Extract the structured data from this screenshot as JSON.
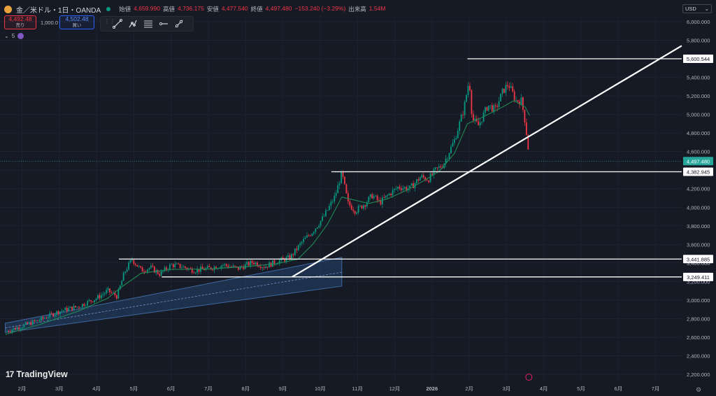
{
  "header": {
    "symbol_title": "金／米ドル・1日・OANDA",
    "open_label": "始値",
    "open_value": "4,659.990",
    "high_label": "高値",
    "high_value": "4,736.175",
    "low_label": "安値",
    "low_value": "4,477.540",
    "close_label": "終値",
    "close_value": "4,497.480",
    "change": "−153.240 (−3.29%)",
    "volume_label": "出来高",
    "volume_value": "1.54M"
  },
  "trade": {
    "sell_price": "4,492.48",
    "sell_label": "売り",
    "quantity": "1,000.0",
    "buy_price": "4,502.48",
    "buy_label": "買い"
  },
  "indicator_row": {
    "label": "5"
  },
  "toolbar": {
    "icons": [
      "trend-line-icon",
      "multi-point-icon",
      "fib-retracement-icon",
      "horizontal-ray-icon",
      "cross-line-icon"
    ]
  },
  "currency_select": "USD",
  "logo": {
    "mark": "17",
    "name": "TradingView"
  },
  "colors": {
    "background": "#161a25",
    "grid": "#1f2330",
    "up": "#089981",
    "down": "#f23645",
    "ma": "#1f8a57",
    "channel": "#26456e",
    "lines": "#ffffff",
    "current_badge": "#26a69a"
  },
  "chart_data": {
    "type": "candlestick",
    "title": "金／米ドル・1日・OANDA",
    "ylabel": "",
    "ylim": [
      2100,
      6100
    ],
    "y_ticks": [
      "6,000.000",
      "5,800.000",
      "5,600.000",
      "5,400.000",
      "5,200.000",
      "5,000.000",
      "4,800.000",
      "4,600.000",
      "4,400.000",
      "4,200.000",
      "4,000.000",
      "3,800.000",
      "3,600.000",
      "3,400.000",
      "3,200.000",
      "3,000.000",
      "2,800.000",
      "2,600.000",
      "2,400.000",
      "2,200.000"
    ],
    "y_tick_values": [
      6000,
      5800,
      5600,
      5400,
      5200,
      5000,
      4800,
      4600,
      4400,
      4200,
      4000,
      3800,
      3600,
      3400,
      3200,
      3000,
      2800,
      2600,
      2400,
      2200
    ],
    "x_labels": [
      "2月",
      "3月",
      "4月",
      "5月",
      "6月",
      "7月",
      "8月",
      "9月",
      "10月",
      "11月",
      "12月",
      "2026",
      "2月",
      "3月",
      "4月",
      "5月",
      "6月",
      "7月"
    ],
    "x_tick_months": [
      1,
      2,
      3,
      4,
      5,
      6,
      7,
      8,
      9,
      10,
      11,
      12,
      13,
      14,
      15,
      16,
      17,
      18
    ],
    "xlim_months": [
      0.55,
      18.6
    ],
    "last_month": 14.62,
    "series_path": [
      [
        0.55,
        2660
      ],
      [
        1.0,
        2720
      ],
      [
        1.5,
        2790
      ],
      [
        2.0,
        2880
      ],
      [
        2.5,
        2930
      ],
      [
        3.0,
        3020
      ],
      [
        3.3,
        3100
      ],
      [
        3.55,
        3040
      ],
      [
        3.75,
        3300
      ],
      [
        3.95,
        3440
      ],
      [
        4.2,
        3320
      ],
      [
        4.45,
        3350
      ],
      [
        4.7,
        3280
      ],
      [
        5.0,
        3380
      ],
      [
        5.3,
        3360
      ],
      [
        5.6,
        3320
      ],
      [
        6.0,
        3340
      ],
      [
        6.4,
        3380
      ],
      [
        6.8,
        3340
      ],
      [
        7.2,
        3410
      ],
      [
        7.5,
        3360
      ],
      [
        7.8,
        3410
      ],
      [
        8.2,
        3460
      ],
      [
        8.5,
        3620
      ],
      [
        8.8,
        3740
      ],
      [
        9.1,
        3900
      ],
      [
        9.4,
        4120
      ],
      [
        9.58,
        4370
      ],
      [
        9.75,
        4040
      ],
      [
        9.95,
        3960
      ],
      [
        10.2,
        4040
      ],
      [
        10.4,
        4130
      ],
      [
        10.6,
        4050
      ],
      [
        10.85,
        4140
      ],
      [
        11.1,
        4220
      ],
      [
        11.4,
        4200
      ],
      [
        11.7,
        4330
      ],
      [
        11.9,
        4300
      ],
      [
        12.1,
        4400
      ],
      [
        12.3,
        4460
      ],
      [
        12.6,
        4720
      ],
      [
        12.85,
        5050
      ],
      [
        13.0,
        5380
      ],
      [
        13.08,
        4950
      ],
      [
        13.25,
        4880
      ],
      [
        13.5,
        5100
      ],
      [
        13.7,
        5050
      ],
      [
        13.9,
        5250
      ],
      [
        14.05,
        5330
      ],
      [
        14.25,
        5150
      ],
      [
        14.4,
        5150
      ],
      [
        14.5,
        4920
      ],
      [
        14.62,
        4497
      ]
    ],
    "moving_average_path": [
      [
        0.55,
        2630
      ],
      [
        1.5,
        2740
      ],
      [
        2.5,
        2880
      ],
      [
        3.3,
        3020
      ],
      [
        3.7,
        3150
      ],
      [
        4.2,
        3290
      ],
      [
        5.0,
        3330
      ],
      [
        6.0,
        3335
      ],
      [
        7.0,
        3360
      ],
      [
        7.8,
        3390
      ],
      [
        8.4,
        3440
      ],
      [
        8.8,
        3600
      ],
      [
        9.2,
        3820
      ],
      [
        9.58,
        4110
      ],
      [
        9.9,
        4080
      ],
      [
        10.3,
        4040
      ],
      [
        10.8,
        4090
      ],
      [
        11.3,
        4180
      ],
      [
        11.8,
        4290
      ],
      [
        12.2,
        4390
      ],
      [
        12.6,
        4580
      ],
      [
        12.95,
        4900
      ],
      [
        13.3,
        4960
      ],
      [
        13.8,
        5060
      ],
      [
        14.2,
        5150
      ],
      [
        14.5,
        5080
      ],
      [
        14.62,
        4990
      ]
    ],
    "channel": {
      "upper_start": [
        0.55,
        2750
      ],
      "upper_end": [
        9.58,
        3460
      ],
      "lower_start": [
        0.55,
        2650
      ],
      "lower_end": [
        9.58,
        3150
      ],
      "mid_start": [
        0.55,
        2700
      ],
      "mid_end": [
        9.58,
        3300
      ]
    },
    "trendline": {
      "start": [
        8.25,
        3250
      ],
      "end": [
        18.7,
        5740
      ]
    },
    "horizontal_lines": [
      {
        "value": 5600.544,
        "label": "5,600.544",
        "from_month": 12.95
      },
      {
        "value": 4382.945,
        "label": "4,382.945",
        "from_month": 9.3
      },
      {
        "value": 3441.885,
        "label": "3,441.885",
        "from_month": 3.6
      },
      {
        "value": 3249.411,
        "label": "3,249.411",
        "from_month": 4.75
      }
    ],
    "current_price": {
      "value": 4497.48,
      "label": "4,497.480"
    },
    "grid": true,
    "legend": "none"
  }
}
